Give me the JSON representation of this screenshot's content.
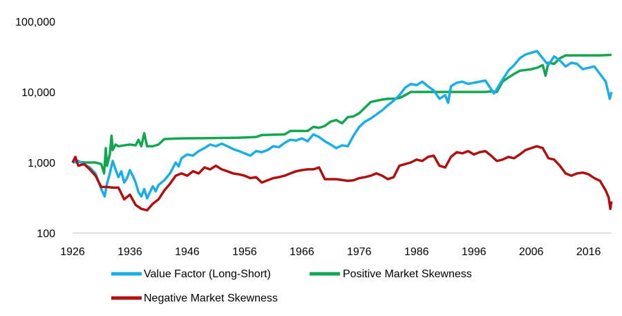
{
  "chart_data": {
    "type": "line",
    "title": "",
    "xlabel": "",
    "ylabel": "",
    "y_scale": "log",
    "ylim": [
      100,
      100000
    ],
    "xlim": [
      1926,
      2020
    ],
    "grid": false,
    "legend_position": "bottom",
    "x_ticks": [
      {
        "value": 1926,
        "label": "1926"
      },
      {
        "value": 1936,
        "label": "1936"
      },
      {
        "value": 1946,
        "label": "1946"
      },
      {
        "value": 1956,
        "label": "1956"
      },
      {
        "value": 1966,
        "label": "1966"
      },
      {
        "value": 1976,
        "label": "1976"
      },
      {
        "value": 1986,
        "label": "1986"
      },
      {
        "value": 1996,
        "label": "1996"
      },
      {
        "value": 2006,
        "label": "2006"
      },
      {
        "value": 2016,
        "label": "2016"
      }
    ],
    "y_ticks": [
      {
        "value": 100,
        "label": "100"
      },
      {
        "value": 1000,
        "label": "1,000"
      },
      {
        "value": 10000,
        "label": "10,000"
      },
      {
        "value": 100000,
        "label": "100,000"
      }
    ],
    "series": [
      {
        "name": "Value Factor (Long-Short)",
        "color": "#1aaee6",
        "points": [
          [
            1926,
            1000
          ],
          [
            1927,
            1050
          ],
          [
            1928,
            950
          ],
          [
            1929,
            850
          ],
          [
            1930,
            700
          ],
          [
            1931,
            420
          ],
          [
            1931.6,
            330
          ],
          [
            1932,
            500
          ],
          [
            1932.5,
            700
          ],
          [
            1933,
            1050
          ],
          [
            1933.5,
            800
          ],
          [
            1934,
            620
          ],
          [
            1934.5,
            750
          ],
          [
            1935,
            520
          ],
          [
            1935.5,
            600
          ],
          [
            1936,
            780
          ],
          [
            1936.5,
            650
          ],
          [
            1937,
            520
          ],
          [
            1937.5,
            380
          ],
          [
            1938,
            330
          ],
          [
            1938.5,
            420
          ],
          [
            1939,
            310
          ],
          [
            1939.5,
            380
          ],
          [
            1940,
            460
          ],
          [
            1940.5,
            390
          ],
          [
            1941,
            480
          ],
          [
            1942,
            560
          ],
          [
            1943,
            700
          ],
          [
            1944,
            1000
          ],
          [
            1944.5,
            880
          ],
          [
            1945,
            1150
          ],
          [
            1946,
            1300
          ],
          [
            1947,
            1250
          ],
          [
            1948,
            1450
          ],
          [
            1949,
            1600
          ],
          [
            1950,
            1800
          ],
          [
            1951,
            1700
          ],
          [
            1952,
            1850
          ],
          [
            1953,
            1700
          ],
          [
            1954,
            1550
          ],
          [
            1955,
            1450
          ],
          [
            1956,
            1350
          ],
          [
            1957,
            1250
          ],
          [
            1958,
            1450
          ],
          [
            1959,
            1400
          ],
          [
            1960,
            1500
          ],
          [
            1961,
            1700
          ],
          [
            1962,
            1650
          ],
          [
            1963,
            1900
          ],
          [
            1964,
            2100
          ],
          [
            1965,
            2050
          ],
          [
            1966,
            2200
          ],
          [
            1967,
            2000
          ],
          [
            1968,
            2500
          ],
          [
            1969,
            2300
          ],
          [
            1970,
            2000
          ],
          [
            1971,
            1800
          ],
          [
            1972,
            1600
          ],
          [
            1973,
            1750
          ],
          [
            1974,
            1700
          ],
          [
            1975,
            2400
          ],
          [
            1976,
            3200
          ],
          [
            1977,
            3800
          ],
          [
            1978,
            4200
          ],
          [
            1979,
            4800
          ],
          [
            1980,
            5500
          ],
          [
            1981,
            6500
          ],
          [
            1982,
            7500
          ],
          [
            1983,
            9000
          ],
          [
            1984,
            11500
          ],
          [
            1985,
            13000
          ],
          [
            1986,
            12500
          ],
          [
            1987,
            14000
          ],
          [
            1988,
            12000
          ],
          [
            1989,
            10500
          ],
          [
            1990,
            8000
          ],
          [
            1991,
            9000
          ],
          [
            1991.5,
            7000
          ],
          [
            1992,
            12000
          ],
          [
            1993,
            13500
          ],
          [
            1994,
            14000
          ],
          [
            1995,
            13000
          ],
          [
            1996,
            13500
          ],
          [
            1997,
            14000
          ],
          [
            1998,
            14500
          ],
          [
            1999,
            11000
          ],
          [
            1999.5,
            9500
          ],
          [
            2000,
            11000
          ],
          [
            2001,
            15000
          ],
          [
            2002,
            20000
          ],
          [
            2003,
            24000
          ],
          [
            2004,
            30000
          ],
          [
            2005,
            34000
          ],
          [
            2006,
            36000
          ],
          [
            2007,
            38000
          ],
          [
            2008,
            30000
          ],
          [
            2009,
            24000
          ],
          [
            2010,
            32000
          ],
          [
            2011,
            28000
          ],
          [
            2012,
            23000
          ],
          [
            2013,
            26000
          ],
          [
            2014,
            25000
          ],
          [
            2015,
            21000
          ],
          [
            2016,
            22000
          ],
          [
            2017,
            23000
          ],
          [
            2018,
            18000
          ],
          [
            2019,
            14000
          ],
          [
            2019.7,
            8000
          ],
          [
            2020,
            10000
          ]
        ]
      },
      {
        "name": "Positive Market Skewness",
        "color": "#12a64e",
        "points": [
          [
            1926,
            1000
          ],
          [
            1927,
            1020
          ],
          [
            1928,
            1000
          ],
          [
            1929,
            1000
          ],
          [
            1930,
            1000
          ],
          [
            1931,
            950
          ],
          [
            1931.5,
            700
          ],
          [
            1931.8,
            1600
          ],
          [
            1932,
            900
          ],
          [
            1932.5,
            1300
          ],
          [
            1932.8,
            2400
          ],
          [
            1933,
            1500
          ],
          [
            1933.5,
            1800
          ],
          [
            1934,
            1700
          ],
          [
            1935,
            1750
          ],
          [
            1936,
            1800
          ],
          [
            1937,
            1750
          ],
          [
            1937.5,
            2100
          ],
          [
            1938,
            1700
          ],
          [
            1938.5,
            2600
          ],
          [
            1939,
            1700
          ],
          [
            1940,
            1700
          ],
          [
            1941,
            1800
          ],
          [
            1942,
            2150
          ],
          [
            1945,
            2200
          ],
          [
            1950,
            2220
          ],
          [
            1955,
            2250
          ],
          [
            1958,
            2300
          ],
          [
            1959,
            2450
          ],
          [
            1963,
            2500
          ],
          [
            1964,
            2800
          ],
          [
            1967,
            2800
          ],
          [
            1968,
            3200
          ],
          [
            1969,
            3100
          ],
          [
            1970,
            3300
          ],
          [
            1971,
            3800
          ],
          [
            1972,
            4000
          ],
          [
            1973,
            3600
          ],
          [
            1974,
            4400
          ],
          [
            1975,
            4500
          ],
          [
            1976,
            5000
          ],
          [
            1977,
            6000
          ],
          [
            1978,
            7200
          ],
          [
            1979,
            7500
          ],
          [
            1980,
            7800
          ],
          [
            1981,
            8000
          ],
          [
            1982,
            8000
          ],
          [
            1983,
            8200
          ],
          [
            1984,
            9000
          ],
          [
            1985,
            10000
          ],
          [
            1990,
            10000
          ],
          [
            1995,
            10000
          ],
          [
            1998,
            10000
          ],
          [
            1999,
            10200
          ],
          [
            2000,
            10000
          ],
          [
            2001,
            14000
          ],
          [
            2002,
            16000
          ],
          [
            2003,
            18000
          ],
          [
            2004,
            20000
          ],
          [
            2006,
            21000
          ],
          [
            2007,
            22000
          ],
          [
            2008,
            24000
          ],
          [
            2008.5,
            17000
          ],
          [
            2009,
            26000
          ],
          [
            2010,
            25000
          ],
          [
            2011,
            30000
          ],
          [
            2012,
            33000
          ],
          [
            2015,
            33000
          ],
          [
            2018,
            33000
          ],
          [
            2020,
            33500
          ]
        ]
      },
      {
        "name": "Negative Market Skewness",
        "color": "#b00f0f",
        "points": [
          [
            1926,
            1000
          ],
          [
            1926.5,
            1200
          ],
          [
            1927,
            900
          ],
          [
            1928,
            950
          ],
          [
            1929,
            800
          ],
          [
            1930,
            650
          ],
          [
            1931,
            450
          ],
          [
            1932,
            450
          ],
          [
            1933,
            440
          ],
          [
            1934,
            440
          ],
          [
            1935,
            300
          ],
          [
            1936,
            350
          ],
          [
            1937,
            250
          ],
          [
            1938,
            220
          ],
          [
            1939,
            210
          ],
          [
            1940,
            260
          ],
          [
            1941,
            300
          ],
          [
            1942,
            400
          ],
          [
            1943,
            500
          ],
          [
            1944,
            650
          ],
          [
            1945,
            700
          ],
          [
            1946,
            650
          ],
          [
            1947,
            750
          ],
          [
            1948,
            700
          ],
          [
            1949,
            850
          ],
          [
            1950,
            800
          ],
          [
            1951,
            900
          ],
          [
            1952,
            800
          ],
          [
            1953,
            750
          ],
          [
            1954,
            700
          ],
          [
            1955,
            680
          ],
          [
            1956,
            650
          ],
          [
            1957,
            600
          ],
          [
            1958,
            620
          ],
          [
            1959,
            520
          ],
          [
            1960,
            560
          ],
          [
            1961,
            600
          ],
          [
            1962,
            620
          ],
          [
            1963,
            650
          ],
          [
            1964,
            700
          ],
          [
            1965,
            750
          ],
          [
            1966,
            780
          ],
          [
            1967,
            800
          ],
          [
            1968,
            800
          ],
          [
            1969,
            850
          ],
          [
            1970,
            580
          ],
          [
            1972,
            580
          ],
          [
            1974,
            550
          ],
          [
            1975,
            560
          ],
          [
            1976,
            600
          ],
          [
            1977,
            620
          ],
          [
            1978,
            650
          ],
          [
            1979,
            700
          ],
          [
            1980,
            650
          ],
          [
            1981,
            580
          ],
          [
            1982,
            620
          ],
          [
            1983,
            900
          ],
          [
            1984,
            950
          ],
          [
            1985,
            1000
          ],
          [
            1986,
            1100
          ],
          [
            1987,
            1050
          ],
          [
            1988,
            1200
          ],
          [
            1989,
            1250
          ],
          [
            1990,
            900
          ],
          [
            1991,
            850
          ],
          [
            1992,
            1200
          ],
          [
            1993,
            1400
          ],
          [
            1994,
            1350
          ],
          [
            1995,
            1450
          ],
          [
            1996,
            1300
          ],
          [
            1997,
            1400
          ],
          [
            1998,
            1450
          ],
          [
            1999,
            1250
          ],
          [
            2000,
            1050
          ],
          [
            2001,
            1100
          ],
          [
            2002,
            1200
          ],
          [
            2003,
            1150
          ],
          [
            2004,
            1300
          ],
          [
            2005,
            1500
          ],
          [
            2006,
            1600
          ],
          [
            2007,
            1700
          ],
          [
            2008,
            1600
          ],
          [
            2009,
            1150
          ],
          [
            2010,
            1100
          ],
          [
            2011,
            900
          ],
          [
            2012,
            700
          ],
          [
            2013,
            650
          ],
          [
            2014,
            700
          ],
          [
            2015,
            720
          ],
          [
            2016,
            680
          ],
          [
            2017,
            600
          ],
          [
            2018,
            550
          ],
          [
            2019,
            400
          ],
          [
            2019.5,
            320
          ],
          [
            2019.8,
            220
          ],
          [
            2020,
            280
          ]
        ]
      }
    ]
  }
}
